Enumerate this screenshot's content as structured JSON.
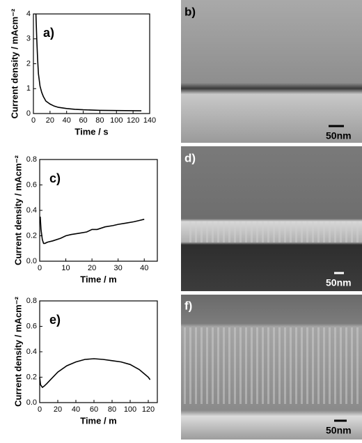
{
  "chart_data": [
    {
      "type": "line",
      "panel": "a)",
      "x_label": "Time / s",
      "y_label": "Current density / mAcm⁻²",
      "x": [
        3,
        4,
        5,
        6,
        8,
        10,
        12,
        15,
        20,
        25,
        30,
        40,
        50,
        60,
        80,
        100,
        130
      ],
      "values": [
        4,
        3.0,
        2.2,
        1.6,
        1.1,
        0.85,
        0.68,
        0.5,
        0.38,
        0.3,
        0.25,
        0.2,
        0.17,
        0.15,
        0.13,
        0.12,
        0.11
      ],
      "color": "#000000",
      "xlim": [
        0,
        140
      ],
      "xticks": [
        0,
        20,
        40,
        60,
        80,
        100,
        120,
        140
      ],
      "ylim": [
        0,
        4
      ],
      "yticks": [
        0,
        1,
        2,
        3,
        4
      ]
    },
    {
      "type": "line",
      "panel": "c)",
      "x_label": "Time / m",
      "y_label": "Current density / mAcm⁻²",
      "x": [
        0.2,
        0.5,
        1,
        1.5,
        2,
        3,
        5,
        8,
        10,
        12,
        15,
        18,
        20,
        22,
        25,
        28,
        30,
        33,
        36,
        38,
        40
      ],
      "values": [
        0.35,
        0.25,
        0.17,
        0.14,
        0.14,
        0.15,
        0.16,
        0.18,
        0.2,
        0.21,
        0.22,
        0.23,
        0.25,
        0.25,
        0.27,
        0.28,
        0.29,
        0.3,
        0.31,
        0.32,
        0.33
      ],
      "color": "#000000",
      "xlim": [
        0,
        45
      ],
      "xticks": [
        0,
        10,
        20,
        30,
        40
      ],
      "ylim": [
        0,
        0.8
      ],
      "yticks": [
        {
          "value": 0,
          "label": "0.0"
        },
        0.2,
        0.4,
        0.6,
        0.8
      ]
    },
    {
      "type": "line",
      "panel": "e)",
      "x_label": "Time / m",
      "y_label": "Current density / mAcm⁻²",
      "x": [
        0,
        1,
        3,
        5,
        8,
        12,
        20,
        30,
        40,
        50,
        60,
        70,
        80,
        90,
        100,
        105,
        110,
        115,
        120,
        122
      ],
      "values": [
        0.2,
        0.14,
        0.12,
        0.13,
        0.15,
        0.18,
        0.24,
        0.29,
        0.32,
        0.34,
        0.345,
        0.34,
        0.33,
        0.32,
        0.3,
        0.28,
        0.26,
        0.23,
        0.2,
        0.18
      ],
      "color": "#000000",
      "xlim": [
        0,
        130
      ],
      "xticks": [
        0,
        20,
        40,
        60,
        80,
        100,
        120
      ],
      "ylim": [
        0,
        0.8
      ],
      "yticks": [
        {
          "value": 0,
          "label": "0.0"
        },
        0.2,
        0.4,
        0.6,
        0.8
      ]
    }
  ],
  "images": [
    {
      "label": "b)",
      "scale_bar": "50nm"
    },
    {
      "label": "d)",
      "scale_bar": "50nm"
    },
    {
      "label": "f)",
      "scale_bar": "50nm"
    }
  ]
}
